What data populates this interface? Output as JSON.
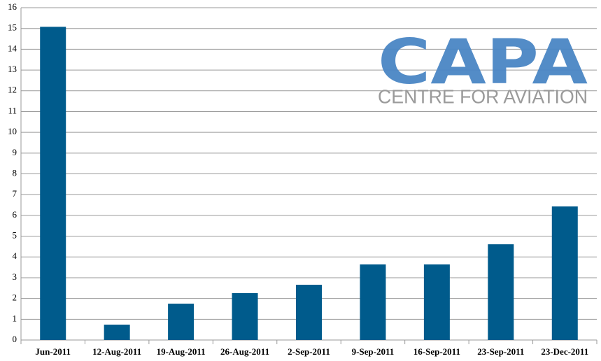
{
  "chart_data": {
    "type": "bar",
    "categories": [
      "Jun-2011",
      "12-Aug-2011",
      "19-Aug-2011",
      "26-Aug-2011",
      "2-Sep-2011",
      "9-Sep-2011",
      "16-Sep-2011",
      "23-Sep-2011",
      "23-Dec-2011"
    ],
    "values": [
      15.08,
      0.74,
      1.75,
      2.26,
      2.66,
      3.64,
      3.64,
      4.61,
      6.43
    ],
    "color": "#005b8c",
    "ylim": [
      0,
      16
    ],
    "yticks": [
      0,
      1,
      2,
      3,
      4,
      5,
      6,
      7,
      8,
      9,
      10,
      11,
      12,
      13,
      14,
      15,
      16
    ],
    "grid": true,
    "logo": {
      "title": "CAPA",
      "subtitle": "CENTRE FOR AVIATION"
    }
  }
}
